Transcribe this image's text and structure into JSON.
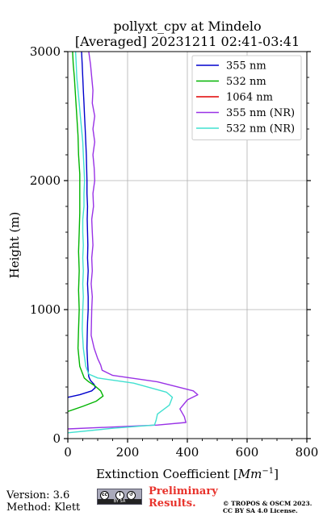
{
  "chart_data": {
    "type": "line",
    "title": "pollyxt_cpv at Mindelo",
    "subtitle": "[Averaged] 20231211 02:41-03:41",
    "xlabel": "Extinction Coefficient [",
    "xlabel_unit": "Mm",
    "xlabel_exp": "−1",
    "xlabel_close": "]",
    "ylabel": "Height (m)",
    "xlim": [
      0,
      800
    ],
    "ylim": [
      0,
      3000
    ],
    "x_ticks": [
      0,
      200,
      400,
      600,
      800
    ],
    "y_ticks": [
      0,
      1000,
      2000,
      3000
    ],
    "grid": true,
    "legend_position": "top-right",
    "series": [
      {
        "name": "355 nm",
        "color": "#0000cd",
        "points": [
          [
            0,
            320
          ],
          [
            40,
            340
          ],
          [
            80,
            370
          ],
          [
            92,
            395
          ],
          [
            88,
            420
          ],
          [
            76,
            450
          ],
          [
            70,
            480
          ],
          [
            68,
            520
          ],
          [
            66,
            600
          ],
          [
            64,
            700
          ],
          [
            65,
            800
          ],
          [
            66,
            900
          ],
          [
            68,
            1000
          ],
          [
            68,
            1100
          ],
          [
            66,
            1200
          ],
          [
            68,
            1300
          ],
          [
            66,
            1400
          ],
          [
            67,
            1500
          ],
          [
            66,
            1600
          ],
          [
            65,
            1700
          ],
          [
            66,
            1800
          ],
          [
            64,
            1900
          ],
          [
            64,
            2000
          ],
          [
            63,
            2100
          ],
          [
            62,
            2200
          ],
          [
            60,
            2300
          ],
          [
            58,
            2400
          ],
          [
            56,
            2500
          ],
          [
            54,
            2600
          ],
          [
            52,
            2700
          ],
          [
            50,
            2800
          ],
          [
            48,
            2900
          ],
          [
            46,
            3000
          ]
        ]
      },
      {
        "name": "532 nm",
        "color": "#00b400",
        "points": [
          [
            0,
            210
          ],
          [
            50,
            250
          ],
          [
            95,
            290
          ],
          [
            118,
            330
          ],
          [
            110,
            370
          ],
          [
            90,
            410
          ],
          [
            70,
            440
          ],
          [
            55,
            470
          ],
          [
            40,
            560
          ],
          [
            34,
            700
          ],
          [
            36,
            850
          ],
          [
            38,
            1000
          ],
          [
            36,
            1150
          ],
          [
            38,
            1300
          ],
          [
            36,
            1450
          ],
          [
            38,
            1600
          ],
          [
            40,
            1750
          ],
          [
            40,
            1900
          ],
          [
            40,
            2050
          ],
          [
            36,
            2200
          ],
          [
            34,
            2350
          ],
          [
            30,
            2500
          ],
          [
            26,
            2650
          ],
          [
            22,
            2800
          ],
          [
            18,
            2900
          ],
          [
            16,
            3000
          ]
        ]
      },
      {
        "name": "1064 nm",
        "color": "#e00000",
        "points": []
      },
      {
        "name": "355 nm (NR)",
        "color": "#9932e6",
        "points": [
          [
            0,
            75
          ],
          [
            200,
            95
          ],
          [
            300,
            105
          ],
          [
            395,
            125
          ],
          [
            390,
            170
          ],
          [
            375,
            230
          ],
          [
            400,
            300
          ],
          [
            435,
            340
          ],
          [
            420,
            370
          ],
          [
            300,
            440
          ],
          [
            150,
            490
          ],
          [
            115,
            530
          ],
          [
            110,
            570
          ],
          [
            100,
            620
          ],
          [
            88,
            700
          ],
          [
            78,
            800
          ],
          [
            80,
            1000
          ],
          [
            82,
            1100
          ],
          [
            78,
            1200
          ],
          [
            82,
            1300
          ],
          [
            80,
            1400
          ],
          [
            84,
            1500
          ],
          [
            82,
            1600
          ],
          [
            80,
            1700
          ],
          [
            86,
            1800
          ],
          [
            84,
            1900
          ],
          [
            90,
            2000
          ],
          [
            88,
            2100
          ],
          [
            84,
            2200
          ],
          [
            90,
            2300
          ],
          [
            84,
            2400
          ],
          [
            90,
            2500
          ],
          [
            82,
            2600
          ],
          [
            84,
            2700
          ],
          [
            80,
            2800
          ],
          [
            76,
            2900
          ],
          [
            70,
            3000
          ]
        ]
      },
      {
        "name": "532 nm (NR)",
        "color": "#40e0d0",
        "points": [
          [
            0,
            45
          ],
          [
            150,
            80
          ],
          [
            290,
            105
          ],
          [
            295,
            140
          ],
          [
            300,
            190
          ],
          [
            340,
            260
          ],
          [
            350,
            320
          ],
          [
            330,
            360
          ],
          [
            220,
            430
          ],
          [
            100,
            470
          ],
          [
            70,
            500
          ],
          [
            60,
            560
          ],
          [
            52,
            700
          ],
          [
            48,
            850
          ],
          [
            50,
            1000
          ],
          [
            52,
            1100
          ],
          [
            50,
            1200
          ],
          [
            52,
            1300
          ],
          [
            50,
            1400
          ],
          [
            52,
            1500
          ],
          [
            50,
            1600
          ],
          [
            50,
            1700
          ],
          [
            54,
            1800
          ],
          [
            54,
            1900
          ],
          [
            56,
            2000
          ],
          [
            54,
            2100
          ],
          [
            52,
            2200
          ],
          [
            50,
            2300
          ],
          [
            46,
            2400
          ],
          [
            42,
            2500
          ],
          [
            38,
            2600
          ],
          [
            34,
            2700
          ],
          [
            30,
            2800
          ],
          [
            28,
            2900
          ],
          [
            26,
            3000
          ]
        ]
      }
    ]
  },
  "footer": {
    "version": "Version: 3.6",
    "method": "Method: Klett",
    "preliminary_line1": "Preliminary",
    "preliminary_line2": "Results.",
    "copyright_line1": "© TROPOS & OSCM 2023.",
    "copyright_line2": "CC BY SA 4.0 License.",
    "badge_cc": "cc",
    "badge_by": "i",
    "badge_sa": "↺",
    "badge_text": "BY   SA"
  }
}
